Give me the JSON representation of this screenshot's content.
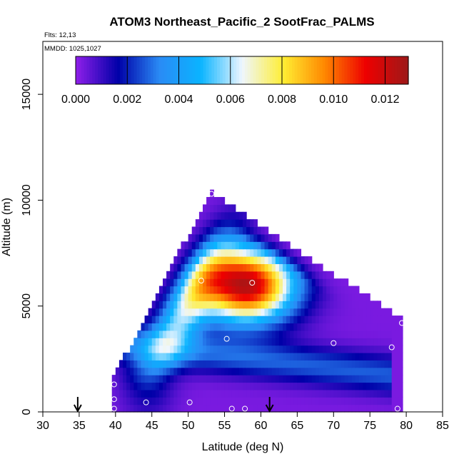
{
  "chart_data": {
    "type": "heatmap",
    "title": "ATOM3 Northeast_Pacific_2 SootFrac_PALMS",
    "flights_note": "Flts: 12,13",
    "dates_note": "MMDD: 1025,1027",
    "xlabel": "Latitude (deg N)",
    "ylabel": "Altitude (m)",
    "xlim": [
      30,
      85
    ],
    "ylim": [
      0,
      17500
    ],
    "xticks": [
      "30",
      "35",
      "40",
      "45",
      "50",
      "55",
      "60",
      "65",
      "70",
      "75",
      "80",
      "85"
    ],
    "yticks": [
      "0",
      "5000",
      "10000",
      "15000"
    ],
    "colorbar": {
      "ticks": [
        "0.000",
        "0.002",
        "0.004",
        "0.006",
        "0.008",
        "0.010",
        "0.012"
      ],
      "range": [
        0,
        0.0129
      ],
      "colors": [
        "#8b1ee8",
        "#0000a8",
        "#2a8bf5",
        "#0ab4ff",
        "#eef6ff",
        "#ffee33",
        "#ff8800",
        "#ee0000",
        "#a01818"
      ]
    },
    "field": {
      "core_lat": 58,
      "core_alt": 6000,
      "peak_value": 0.0125,
      "background_value": 0.0002
    },
    "points": [
      {
        "lat": 39.8,
        "alt": 1300
      },
      {
        "lat": 39.8,
        "alt": 600
      },
      {
        "lat": 39.8,
        "alt": 150
      },
      {
        "lat": 44.2,
        "alt": 450
      },
      {
        "lat": 50.2,
        "alt": 450
      },
      {
        "lat": 51.8,
        "alt": 6200
      },
      {
        "lat": 53.2,
        "alt": 10300
      },
      {
        "lat": 55.3,
        "alt": 3450
      },
      {
        "lat": 56.0,
        "alt": 150
      },
      {
        "lat": 57.8,
        "alt": 150
      },
      {
        "lat": 58.8,
        "alt": 6100
      },
      {
        "lat": 70.0,
        "alt": 3250
      },
      {
        "lat": 78.0,
        "alt": 3050
      },
      {
        "lat": 79.4,
        "alt": 4200
      },
      {
        "lat": 78.8,
        "alt": 150
      }
    ],
    "arrows": [
      {
        "lat": 34.8
      },
      {
        "lat": 61.2
      }
    ]
  }
}
